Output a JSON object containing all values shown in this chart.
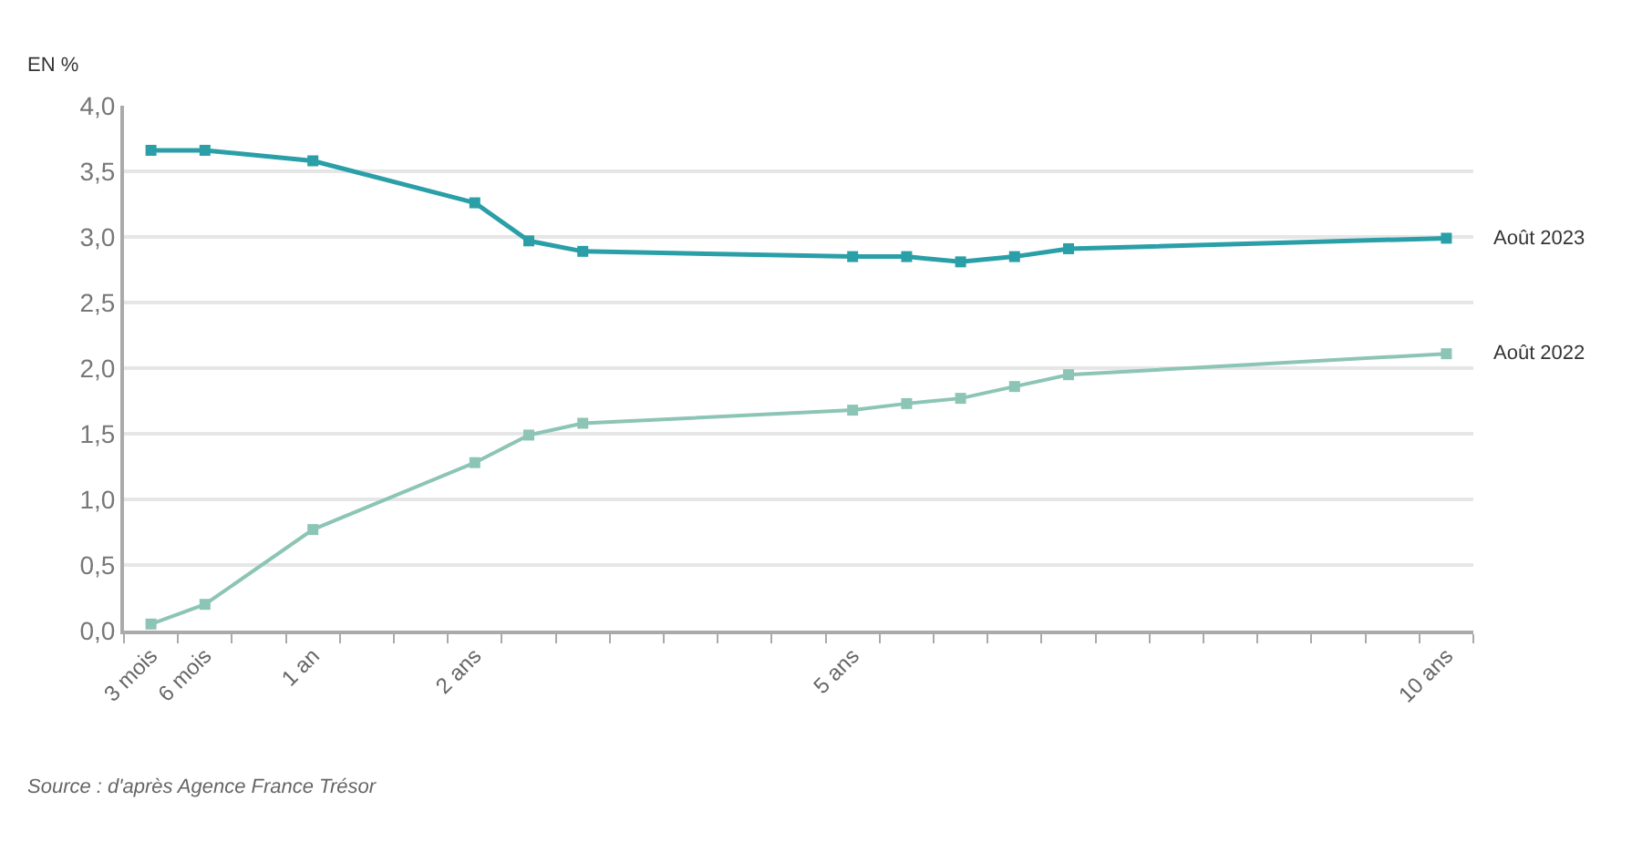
{
  "chart_data": {
    "type": "line",
    "ylabel": "EN %",
    "categories": [
      "3 mois",
      "6 mois",
      null,
      "1 an",
      null,
      null,
      "2 ans",
      null,
      null,
      null,
      null,
      null,
      null,
      "5 ans",
      null,
      null,
      null,
      null,
      null,
      null,
      null,
      null,
      null,
      null,
      "10 ans"
    ],
    "series": [
      {
        "name": "Août 2023",
        "color": "#2a9fa8",
        "values": [
          3.66,
          3.66,
          null,
          3.58,
          null,
          null,
          3.26,
          2.97,
          2.89,
          null,
          null,
          null,
          null,
          2.85,
          2.85,
          2.81,
          2.85,
          2.91,
          null,
          null,
          null,
          null,
          null,
          null,
          2.99
        ]
      },
      {
        "name": "Août 2022",
        "color": "#8cc5b5",
        "values": [
          0.05,
          0.2,
          null,
          0.77,
          null,
          null,
          1.28,
          1.49,
          1.58,
          null,
          null,
          null,
          null,
          1.68,
          1.73,
          1.77,
          1.86,
          1.95,
          null,
          null,
          null,
          null,
          null,
          null,
          2.11
        ]
      }
    ],
    "ylim": [
      0,
      4
    ],
    "yticks": [
      {
        "value": 0,
        "label": "0,0"
      },
      {
        "value": 0.5,
        "label": "0,5"
      },
      {
        "value": 1,
        "label": "1,0"
      },
      {
        "value": 1.5,
        "label": "1,5"
      },
      {
        "value": 2,
        "label": "2,0"
      },
      {
        "value": 2.5,
        "label": "2,5"
      },
      {
        "value": 3,
        "label": "3,0"
      },
      {
        "value": 3.5,
        "label": "3,5"
      },
      {
        "value": 4,
        "label": "4,0"
      }
    ],
    "grid": "y",
    "marker": "square",
    "line_style": "solid",
    "annotations": [
      "Source : d'après Agence France Trésor"
    ]
  }
}
